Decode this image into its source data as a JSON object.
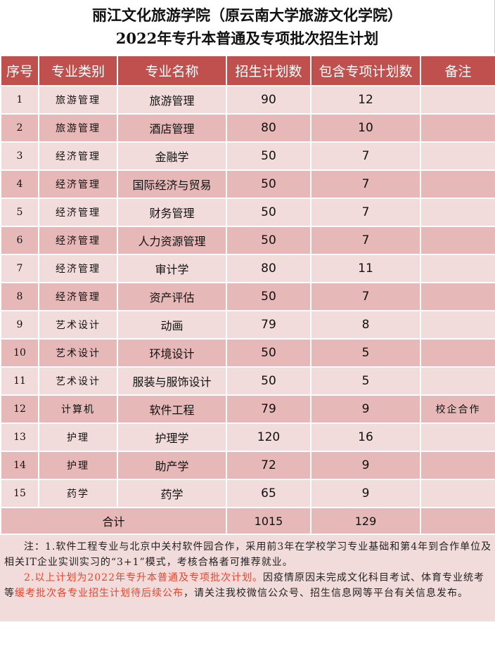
{
  "title": {
    "line1": "丽江文化旅游学院（原云南大学旅游文化学院）",
    "line2": "2022年专升本普通及专项批次招生计划"
  },
  "headers": [
    "序号",
    "专业类别",
    "专业名称",
    "招生计划数",
    "包含专项计划数",
    "备注"
  ],
  "rows": [
    [
      "1",
      "旅游管理",
      "旅游管理",
      "90",
      "12",
      ""
    ],
    [
      "2",
      "旅游管理",
      "酒店管理",
      "80",
      "10",
      ""
    ],
    [
      "3",
      "经济管理",
      "金融学",
      "50",
      "7",
      ""
    ],
    [
      "4",
      "经济管理",
      "国际经济与贸易",
      "50",
      "7",
      ""
    ],
    [
      "5",
      "经济管理",
      "财务管理",
      "50",
      "7",
      ""
    ],
    [
      "6",
      "经济管理",
      "人力资源管理",
      "50",
      "7",
      ""
    ],
    [
      "7",
      "经济管理",
      "审计学",
      "80",
      "11",
      ""
    ],
    [
      "8",
      "经济管理",
      "资产评估",
      "50",
      "7",
      ""
    ],
    [
      "9",
      "艺术设计",
      "动画",
      "79",
      "8",
      ""
    ],
    [
      "10",
      "艺术设计",
      "环境设计",
      "50",
      "5",
      ""
    ],
    [
      "11",
      "艺术设计",
      "服装与服饰设计",
      "50",
      "5",
      ""
    ],
    [
      "12",
      "计算机",
      "软件工程",
      "79",
      "9",
      "校企合作"
    ],
    [
      "13",
      "护理",
      "护理学",
      "120",
      "16",
      ""
    ],
    [
      "14",
      "护理",
      "助产学",
      "72",
      "9",
      ""
    ],
    [
      "15",
      "药学",
      "药学",
      "65",
      "9",
      ""
    ]
  ],
  "total": {
    "label": "合计",
    "plan": "1015",
    "special": "129"
  },
  "notes": {
    "n1": "注：1.软件工程专业与北京中关村软件园合作，采用前3年在学校学习专业基础和第4年到合作单位及相关IT企业实训实习的“3+1”模式，考核合格者可推荐就业。",
    "n2_red": "2.以上计划为2022年专升本普通及专项批次计划。",
    "n2_a": "因疫情原因未完成文化科目考试、体育专业统考等",
    "n2_red2": "缓考批次各专业招生计划待后续公布",
    "n2_b": "，请关注我校微信公众号、招生信息网等平台有关信息发布。"
  },
  "colors": {
    "header": "#c0504d",
    "row_light": "#f2dcdb",
    "row_dark": "#e6b8b7",
    "note_red": "#e8452c"
  }
}
